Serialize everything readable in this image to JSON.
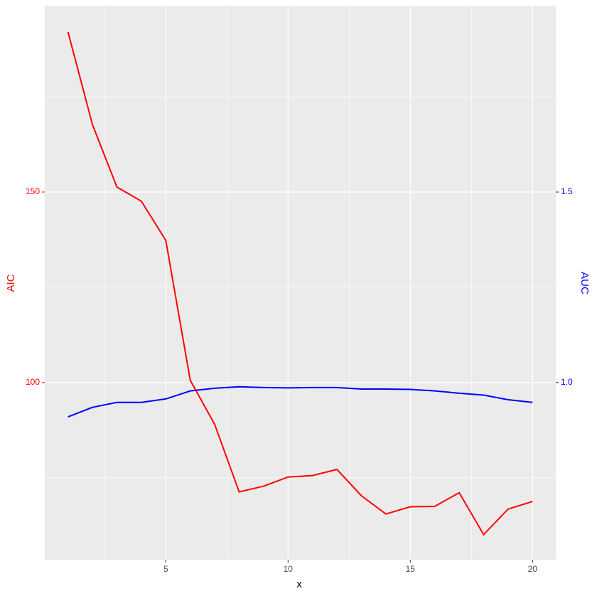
{
  "chart_data": {
    "type": "line",
    "x_label": "x",
    "y_label": "AIC",
    "y2_label": "AUC",
    "x": [
      1,
      2,
      3,
      4,
      5,
      6,
      7,
      8,
      9,
      10,
      11,
      12,
      13,
      14,
      15,
      16,
      17,
      18,
      19,
      20
    ],
    "series": [
      {
        "name": "AIC",
        "color": "#ff0000",
        "axis": "y",
        "values": [
          192.0,
          167.7,
          151.3,
          147.6,
          137.3,
          100.6,
          89.0,
          71.3,
          72.8,
          75.2,
          75.6,
          77.2,
          70.3,
          65.5,
          67.4,
          67.5,
          71.1,
          60.1,
          66.8,
          68.8
        ]
      },
      {
        "name": "AUC",
        "color": "#0000ff",
        "axis": "y2",
        "values": [
          0.91,
          0.935,
          0.948,
          0.948,
          0.957,
          0.978,
          0.985,
          0.989,
          0.987,
          0.986,
          0.987,
          0.987,
          0.983,
          0.983,
          0.982,
          0.978,
          0.972,
          0.967,
          0.955,
          0.948
        ]
      }
    ],
    "xlim": [
      0.05,
      20.95
    ],
    "xticks": [
      5,
      10,
      15,
      20
    ],
    "ylim": [
      53.5,
      198.9
    ],
    "yticks": [
      100,
      150
    ],
    "y2lim": [
      0.535,
      1.989
    ],
    "y2ticks": [
      {
        "value": 1,
        "label": "1.0"
      },
      1.5
    ],
    "grid": true
  }
}
